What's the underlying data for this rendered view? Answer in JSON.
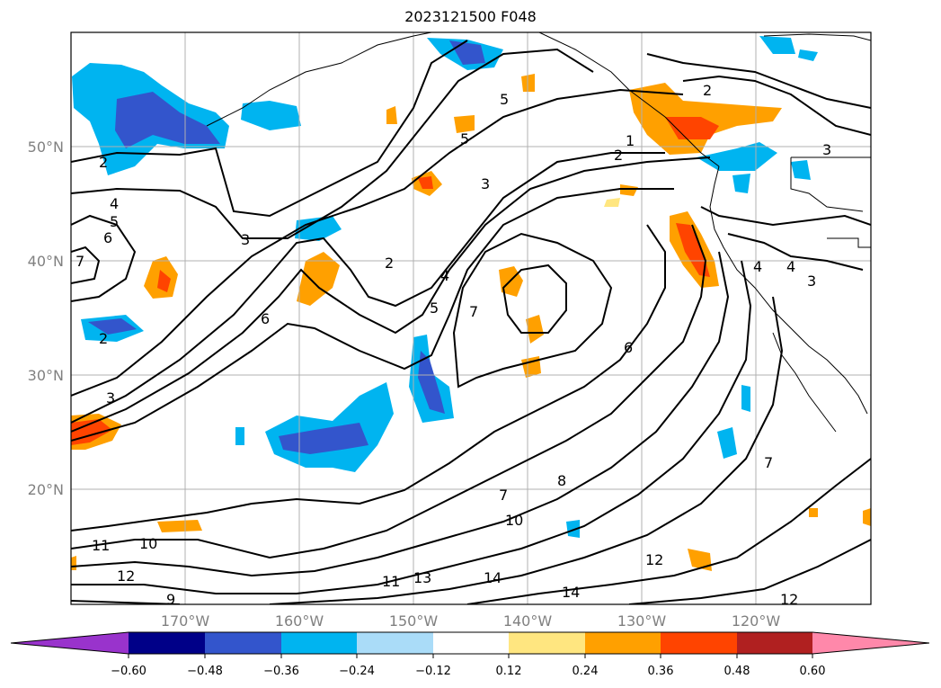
{
  "title": "2023121500 F048",
  "map": {
    "lat_labels": [
      "50°N",
      "40°N",
      "30°N",
      "20°N"
    ],
    "lon_labels": [
      "170°W",
      "160°W",
      "150°W",
      "140°W",
      "130°W",
      "120°W"
    ],
    "gridlines": true,
    "contour_labels": [
      "2",
      "2",
      "2",
      "2",
      "3",
      "3",
      "3",
      "3",
      "4",
      "4",
      "4",
      "4",
      "5",
      "5",
      "5",
      "6",
      "6",
      "6",
      "7",
      "7",
      "7",
      "7",
      "8",
      "9",
      "10",
      "10",
      "11",
      "11",
      "12",
      "12",
      "12",
      "13",
      "14",
      "14",
      "5",
      "3",
      "2",
      "1"
    ]
  },
  "colorbar": {
    "ticks": [
      "−0.60",
      "−0.48",
      "−0.36",
      "−0.24",
      "−0.12",
      "0.12",
      "0.24",
      "0.36",
      "0.48",
      "0.60"
    ],
    "colors": [
      "#9933cc",
      "#000088",
      "#3355cc",
      "#00b4f0",
      "#aadcf8",
      "#ffffff",
      "#ffe680",
      "#ffa000",
      "#ff4400",
      "#b02020",
      "#ff88aa"
    ],
    "extend": "both"
  }
}
